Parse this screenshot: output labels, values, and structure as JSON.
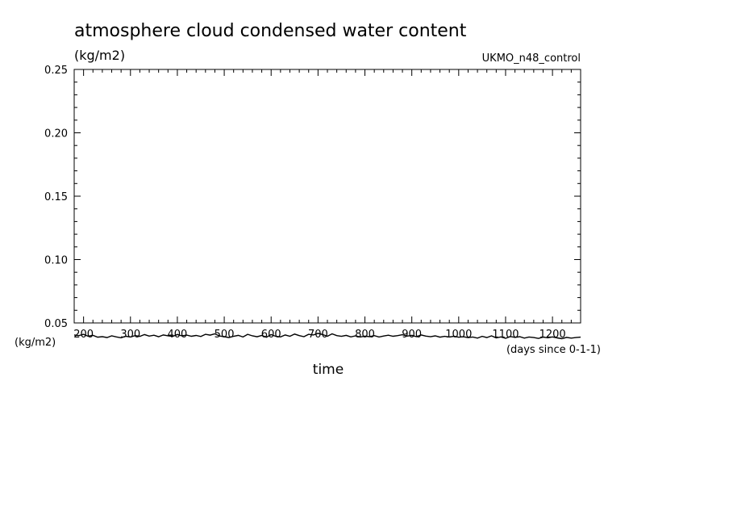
{
  "chart_data": {
    "type": "line",
    "title": "atmosphere cloud condensed water content",
    "units_label": "(kg/m2)",
    "source_label": "UKMO_n48_control",
    "xlabel": "time",
    "x_units_label": "(days since 0-1-1)",
    "y_units_left": "(kg/m2)",
    "xlim": [
      180,
      1260
    ],
    "ylim": [
      0.05,
      0.25
    ],
    "x_ticks": [
      "200",
      "300",
      "400",
      "500",
      "600",
      "700",
      "800",
      "900",
      "1000",
      "1100",
      "1200"
    ],
    "y_ticks": [
      "0.05",
      "0.10",
      "0.15",
      "0.20",
      "0.25"
    ],
    "grid": false,
    "series": [
      {
        "x": [
          180,
          190,
          200,
          210,
          220,
          230,
          240,
          250,
          260,
          270,
          280,
          290,
          300,
          310,
          320,
          330,
          340,
          350,
          360,
          370,
          380,
          390,
          400,
          410,
          420,
          430,
          440,
          450,
          460,
          470,
          480,
          490,
          500,
          510,
          520,
          530,
          540,
          550,
          560,
          570,
          580,
          590,
          600,
          610,
          620,
          630,
          640,
          650,
          660,
          670,
          680,
          690,
          700,
          710,
          720,
          730,
          740,
          750,
          760,
          770,
          780,
          790,
          800,
          810,
          820,
          830,
          840,
          850,
          860,
          870,
          880,
          890,
          900,
          910,
          920,
          930,
          940,
          950,
          960,
          970,
          980,
          990,
          1000,
          1010,
          1020,
          1030,
          1040,
          1050,
          1060,
          1070,
          1080,
          1090,
          1100,
          1110,
          1120,
          1130,
          1140,
          1150,
          1160,
          1170,
          1180,
          1190,
          1200,
          1210,
          1220,
          1230,
          1240,
          1250,
          1260
        ],
        "y": [
          0.0405,
          0.04,
          0.041,
          0.0395,
          0.0402,
          0.0388,
          0.0392,
          0.0385,
          0.0398,
          0.039,
          0.0383,
          0.0395,
          0.0389,
          0.04,
          0.0394,
          0.0408,
          0.0396,
          0.0403,
          0.0391,
          0.0405,
          0.0399,
          0.0394,
          0.0409,
          0.0398,
          0.0404,
          0.0395,
          0.0401,
          0.0393,
          0.041,
          0.0404,
          0.0414,
          0.0397,
          0.0392,
          0.0385,
          0.0395,
          0.0402,
          0.0389,
          0.041,
          0.0398,
          0.0391,
          0.0401,
          0.0387,
          0.0408,
          0.0394,
          0.039,
          0.0405,
          0.0395,
          0.0412,
          0.04,
          0.0392,
          0.041,
          0.0405,
          0.0418,
          0.0408,
          0.0395,
          0.0414,
          0.04,
          0.0394,
          0.0402,
          0.039,
          0.0398,
          0.0389,
          0.0396,
          0.0392,
          0.04,
          0.0389,
          0.0397,
          0.0403,
          0.0395,
          0.04,
          0.0407,
          0.0396,
          0.0402,
          0.0392,
          0.0405,
          0.0396,
          0.0391,
          0.0398,
          0.0388,
          0.0394,
          0.0389,
          0.0395,
          0.0387,
          0.0391,
          0.0384,
          0.0389,
          0.038,
          0.0394,
          0.0385,
          0.0398,
          0.0382,
          0.039,
          0.0379,
          0.0393,
          0.0386,
          0.0392,
          0.038,
          0.0389,
          0.0385,
          0.0378,
          0.0388,
          0.0383,
          0.039,
          0.0382,
          0.0376,
          0.0386,
          0.038,
          0.0385,
          0.0388
        ]
      }
    ]
  }
}
